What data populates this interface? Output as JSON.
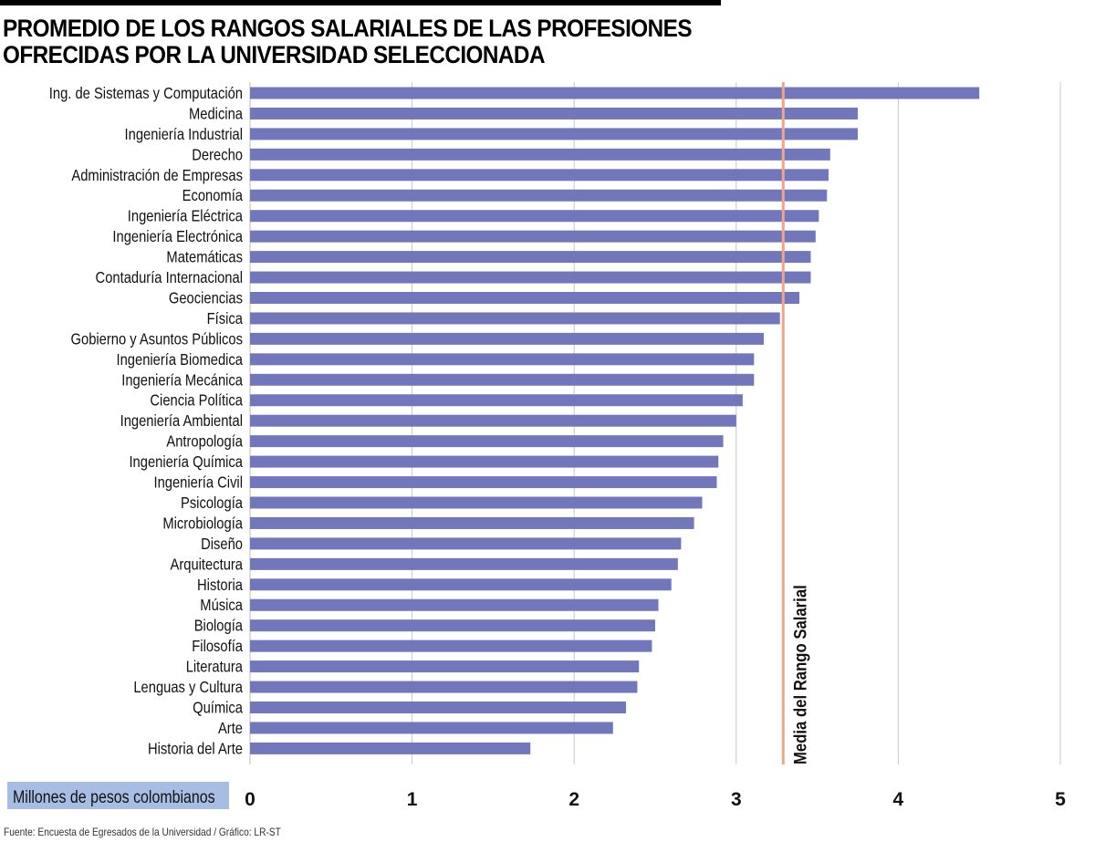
{
  "header": {
    "title_line1": "PROMEDIO DE LOS RANGOS SALARIALES DE LAS PROFESIONES",
    "title_line2": "OFRECIDAS POR LA UNIVERSIDAD SELECCIONADA"
  },
  "footer": {
    "source": "Fuente: Encuesta de Egresados de la Universidad / Gráfico: LR-ST"
  },
  "colors": {
    "bar": "#7277bb",
    "reference_line": "#f0a58a",
    "grid": "#c8c8c8",
    "unit_box": "#a8bde3"
  },
  "chart_data": {
    "type": "bar",
    "orientation": "horizontal",
    "title": "PROMEDIO DE LOS RANGOS SALARIALES DE LAS PROFESIONES OFRECIDAS POR LA UNIVERSIDAD SELECCIONADA",
    "xlabel": "Millones de pesos colombianos",
    "ylabel": "",
    "xlim": [
      0,
      5
    ],
    "xticks": [
      0,
      1,
      2,
      3,
      4,
      5
    ],
    "grid": true,
    "categories": [
      "Ing. de Sistemas y Computación",
      "Medicina",
      "Ingeniería Industrial",
      "Derecho",
      "Administración de Empresas",
      "Economía",
      "Ingeniería Eléctrica",
      "Ingeniería Electrónica",
      "Matemáticas",
      "Contaduría Internacional",
      "Geociencias",
      "Física",
      "Gobierno y Asuntos Públicos",
      "Ingeniería Biomedica",
      "Ingeniería Mecánica",
      "Ciencia Política",
      "Ingeniería Ambiental",
      "Antropología",
      "Ingeniería Química",
      "Ingeniería Civil",
      "Psicología",
      "Microbiología",
      "Diseño",
      "Arquitectura",
      "Historia",
      "Música",
      "Biología",
      "Filosofía",
      "Literatura",
      "Lenguas y Cultura",
      "Química",
      "Arte",
      "Historia del Arte"
    ],
    "values": [
      4.5,
      3.75,
      3.75,
      3.58,
      3.57,
      3.56,
      3.51,
      3.49,
      3.46,
      3.46,
      3.39,
      3.27,
      3.17,
      3.11,
      3.11,
      3.04,
      3.0,
      2.92,
      2.89,
      2.88,
      2.79,
      2.74,
      2.66,
      2.64,
      2.6,
      2.52,
      2.5,
      2.48,
      2.4,
      2.39,
      2.32,
      2.24,
      1.73
    ],
    "reference_line": {
      "value": 3.29,
      "label": "Media del Rango Salarial"
    }
  }
}
